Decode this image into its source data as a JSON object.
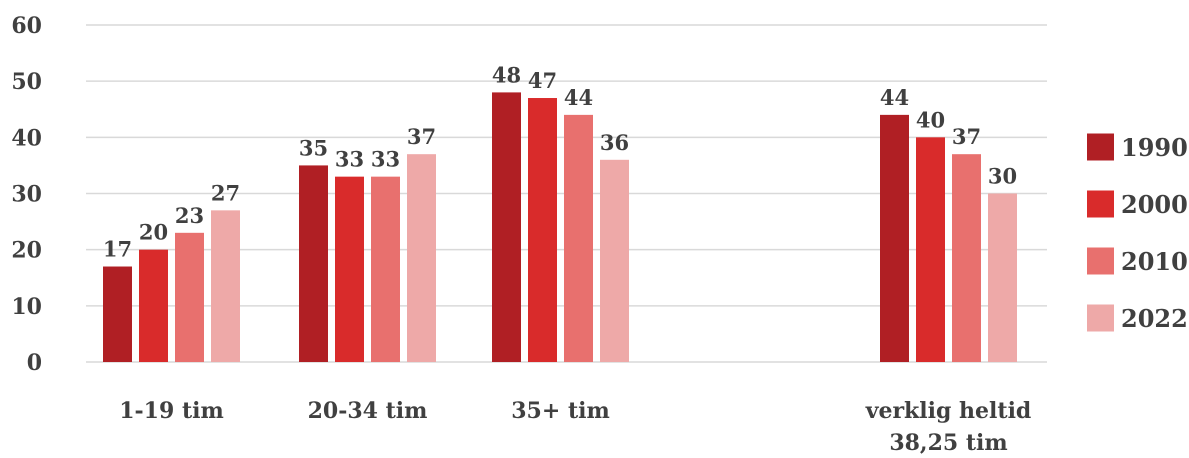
{
  "chart_data": {
    "type": "bar",
    "categories": [
      [
        "1-19 tim"
      ],
      [
        "20-34 tim"
      ],
      [
        "35+ tim"
      ],
      [
        "verklig heltid",
        "38,25 tim"
      ]
    ],
    "series": [
      {
        "name": "1990",
        "values": [
          17,
          35,
          48,
          44
        ]
      },
      {
        "name": "2000",
        "values": [
          20,
          33,
          47,
          40
        ]
      },
      {
        "name": "2010",
        "values": [
          23,
          33,
          44,
          37
        ]
      },
      {
        "name": "2022",
        "values": [
          27,
          37,
          36,
          30
        ]
      }
    ],
    "ylim": [
      0,
      60
    ],
    "yticks": [
      0,
      10,
      20,
      30,
      40,
      50,
      60
    ],
    "grid": true,
    "legend_position": "right",
    "colors": [
      "#b01f24",
      "#d92b2b",
      "#e8706e",
      "#eea9a8"
    ]
  }
}
